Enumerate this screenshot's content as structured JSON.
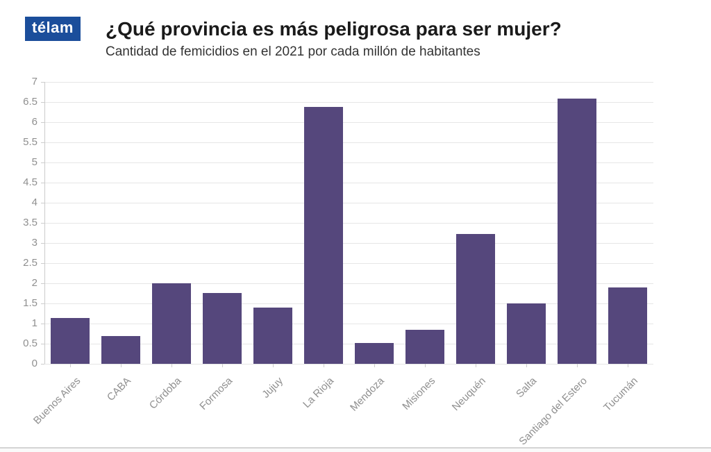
{
  "brand": {
    "logo_text": "télam",
    "logo_bg": "#1b4e9b",
    "logo_color": "#ffffff"
  },
  "header": {
    "title": "¿Qué provincia es más peligrosa para ser mujer?",
    "subtitle": "Cantidad de femicidios en el 2021 por cada millón de habitantes"
  },
  "chart_data": {
    "type": "bar",
    "title": "¿Qué provincia es más peligrosa para ser mujer?",
    "subtitle": "Cantidad de femicidios en el 2021 por cada millón de habitantes",
    "categories": [
      "Buenos Aires",
      "CABA",
      "Córdoba",
      "Formosa",
      "Jujuy",
      "La Rioja",
      "Mendoza",
      "Misiones",
      "Neuquén",
      "Salta",
      "Santiago del Estero",
      "Tucumán"
    ],
    "values": [
      1.13,
      0.69,
      2.0,
      1.75,
      1.39,
      6.38,
      0.52,
      0.84,
      3.22,
      1.5,
      6.58,
      1.9
    ],
    "xlabel": "",
    "ylabel": "",
    "ylim": [
      0,
      7
    ],
    "ytick_step": 0.5,
    "grid": true,
    "legend": "none",
    "bar_color": "#55477c",
    "grid_color": "#e6e6e6",
    "axis_color": "#cccccc",
    "tick_label_color": "#8f8f8f"
  }
}
